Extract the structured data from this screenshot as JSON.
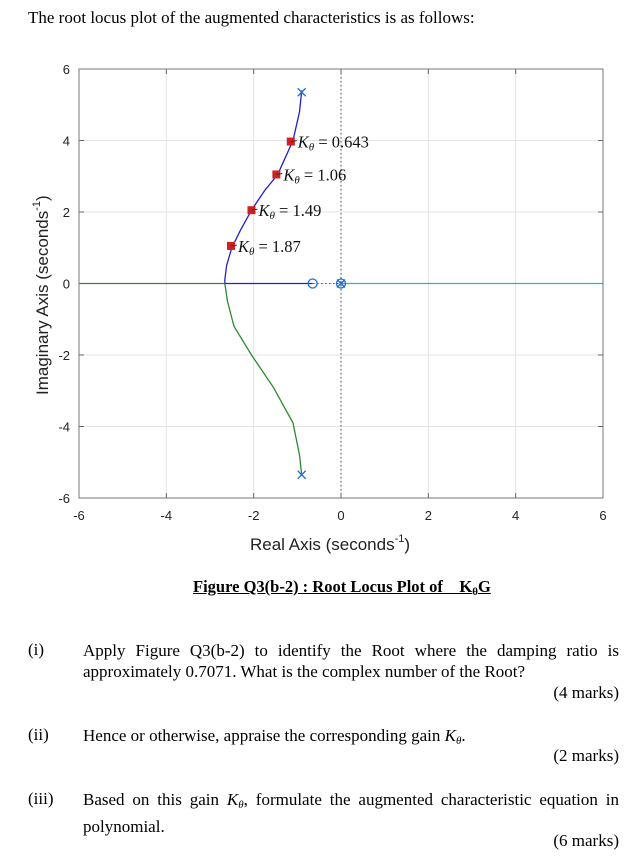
{
  "intro": "The root locus plot of the augmented characteristics is as follows:",
  "chart_data": {
    "type": "line",
    "title": "",
    "xlabel": "Real Axis (seconds",
    "ylabel": "Imaginary Axis (seconds",
    "unit_exp": "-1",
    "xlim": [
      -6,
      6
    ],
    "ylim": [
      -6,
      6
    ],
    "xticks": [
      "-6",
      "-4",
      "-2",
      "0",
      "2",
      "4",
      "6"
    ],
    "yticks": [
      "6",
      "4",
      "2",
      "0",
      "-2",
      "-4",
      "-6"
    ],
    "grid": true,
    "branches": [
      {
        "color": "#1f1fd2",
        "points": [
          [
            -0.9,
            5.4
          ],
          [
            -0.95,
            4.8
          ],
          [
            -1.1,
            4.0
          ],
          [
            -1.45,
            3.05
          ],
          [
            -1.75,
            2.6
          ],
          [
            -2.05,
            2.05
          ],
          [
            -2.3,
            1.5
          ],
          [
            -2.5,
            1.0
          ],
          [
            -2.62,
            0.5
          ],
          [
            -2.66,
            0.1
          ],
          [
            -2.66,
            0.0
          ]
        ]
      },
      {
        "color": "#2e8b2e",
        "points": [
          [
            -2.66,
            0.0
          ],
          [
            -2.6,
            -0.5
          ],
          [
            -2.45,
            -1.2
          ],
          [
            -2.05,
            -2.0
          ],
          [
            -1.55,
            -2.9
          ],
          [
            -1.1,
            -3.9
          ],
          [
            -0.95,
            -4.8
          ],
          [
            -0.9,
            -5.35
          ]
        ]
      },
      {
        "color": "#1f1fd2",
        "points": [
          [
            -2.66,
            0.0
          ],
          [
            -0.65,
            0.0
          ]
        ]
      },
      {
        "color": "#2e8b2e",
        "points": [
          [
            -6,
            0.0
          ],
          [
            -2.66,
            0.0
          ]
        ]
      },
      {
        "color": "#2bb7b7",
        "points": [
          [
            0.0,
            0.0
          ],
          [
            6,
            0.0
          ]
        ]
      }
    ],
    "poles": [
      [
        -0.9,
        5.35
      ],
      [
        -0.9,
        -5.35
      ],
      [
        0.0,
        0.0
      ]
    ],
    "zeros": [
      [
        -0.65,
        0.0
      ],
      [
        0.0,
        0.0
      ]
    ],
    "gain_points": [
      {
        "x": -1.15,
        "y": 3.97,
        "label_sym": "K",
        "label_sub": "θ",
        "label_val": " = 0.643"
      },
      {
        "x": -1.48,
        "y": 3.05,
        "label_sym": "K",
        "label_sub": "θ",
        "label_val": " = 1.06"
      },
      {
        "x": -2.05,
        "y": 2.05,
        "label_sym": "K",
        "label_sub": "θ",
        "label_val": " = 1.49"
      },
      {
        "x": -2.52,
        "y": 1.05,
        "label_sym": "K",
        "label_sub": "θ",
        "label_val": " = 1.87"
      }
    ]
  },
  "caption": {
    "text": "Figure Q3(b-2) : Root Locus Plot of    K",
    "sub": "θ",
    "tail": "G"
  },
  "questions": [
    {
      "num": "(i)",
      "text": "Apply Figure Q3(b-2) to identify the Root where the damping ratio is approximately 0.7071. What is the complex number of the Root?",
      "marks": "(4 marks)"
    },
    {
      "num": "(ii)",
      "text_a": "Hence or otherwise, appraise the corresponding gain ",
      "sym": "K",
      "sub": "θ",
      "text_b": ".",
      "marks": "(2 marks)"
    },
    {
      "num": "(iii)",
      "text_a": "Based on this gain ",
      "sym": "K",
      "sub": "θ",
      "text_b": ", formulate the augmented characteristic equation in polynomial.",
      "marks": "(6 marks)"
    }
  ]
}
